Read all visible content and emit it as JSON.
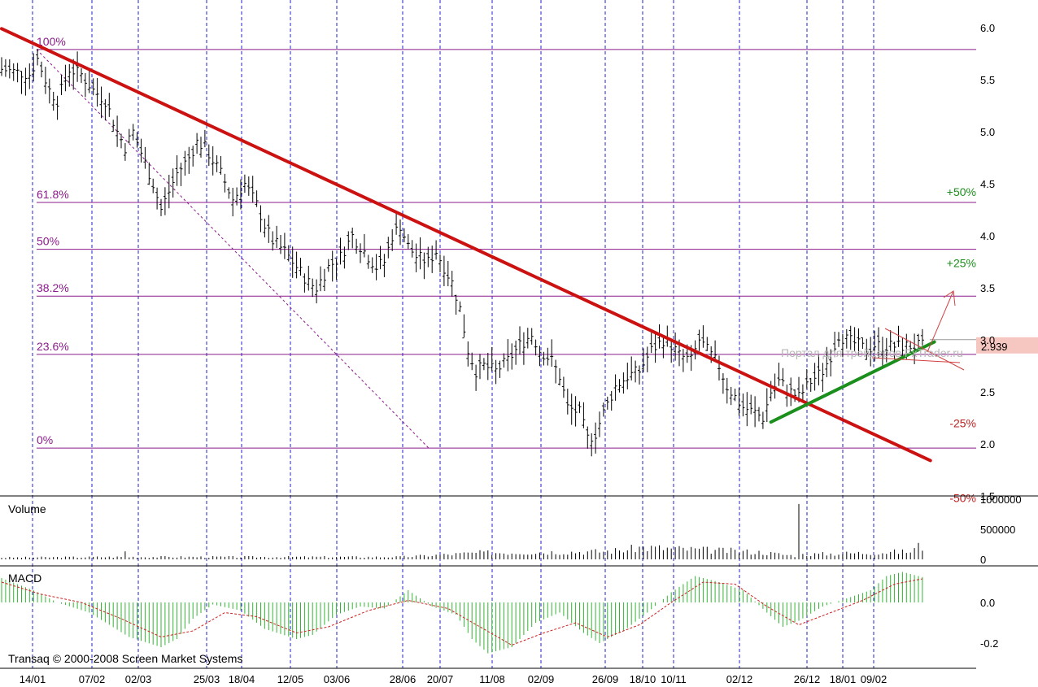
{
  "chart_data": {
    "type": "ohlc",
    "x_tick_labels": [
      "14/01",
      "07/02",
      "02/03",
      "25/03",
      "18/04",
      "12/05",
      "03/06",
      "28/06",
      "20/07",
      "11/08",
      "02/09",
      "26/09",
      "18/10",
      "10/11",
      "02/12",
      "26/12",
      "18/01",
      "09/02"
    ],
    "price_axis": {
      "ylim": [
        1.5,
        6.0
      ],
      "ticks": [
        "6.0",
        "5.5",
        "5.0",
        "4.5",
        "4.0",
        "3.5",
        "3.0",
        "2.5",
        "2.0",
        "1.5"
      ]
    },
    "last_price": "2.939",
    "fibonacci_levels": [
      {
        "label": "100%",
        "value": 5.79
      },
      {
        "label": "61.8%",
        "value": 4.32
      },
      {
        "label": "50%",
        "value": 3.87
      },
      {
        "label": "38.2%",
        "value": 3.42
      },
      {
        "label": "23.6%",
        "value": 2.86
      },
      {
        "label": "0%",
        "value": 1.96
      }
    ],
    "targets": [
      {
        "label": "+50%",
        "value": 4.42,
        "sign": "pos"
      },
      {
        "label": "+25%",
        "value": 3.74,
        "sign": "pos"
      },
      {
        "label": "-25%",
        "value": 2.2,
        "sign": "neg"
      },
      {
        "label": "-50%",
        "value": 1.48,
        "sign": "neg"
      }
    ],
    "trendlines": [
      {
        "name": "resistance",
        "color": "#cc1111",
        "from": [
          0.0,
          5.99
        ],
        "to": [
          233.0,
          1.84
        ]
      },
      {
        "name": "support",
        "color": "#1b8f1b",
        "from": [
          193.0,
          2.21
        ],
        "to": [
          234.0,
          2.98
        ]
      }
    ],
    "price_anchors": [
      [
        0,
        5.6
      ],
      [
        7,
        5.55
      ],
      [
        9,
        5.7
      ],
      [
        12,
        5.4
      ],
      [
        14,
        5.3
      ],
      [
        17,
        5.6
      ],
      [
        20,
        5.55
      ],
      [
        23,
        5.4
      ],
      [
        26,
        5.3
      ],
      [
        29,
        5.0
      ],
      [
        31,
        4.85
      ],
      [
        33,
        5.0
      ],
      [
        36,
        4.7
      ],
      [
        38,
        4.5
      ],
      [
        40,
        4.25
      ],
      [
        44,
        4.6
      ],
      [
        47,
        4.75
      ],
      [
        49,
        4.9
      ],
      [
        51,
        4.85
      ],
      [
        55,
        4.6
      ],
      [
        58,
        4.35
      ],
      [
        61,
        4.5
      ],
      [
        64,
        4.3
      ],
      [
        66,
        4.1
      ],
      [
        68,
        3.95
      ],
      [
        71,
        3.85
      ],
      [
        74,
        3.7
      ],
      [
        77,
        3.55
      ],
      [
        79,
        3.5
      ],
      [
        82,
        3.7
      ],
      [
        85,
        3.8
      ],
      [
        88,
        4.0
      ],
      [
        90,
        3.9
      ],
      [
        92,
        3.8
      ],
      [
        94,
        3.7
      ],
      [
        96,
        3.75
      ],
      [
        98,
        4.0
      ],
      [
        100,
        4.1
      ],
      [
        102,
        3.9
      ],
      [
        104,
        3.8
      ],
      [
        107,
        3.75
      ],
      [
        109,
        3.85
      ],
      [
        111,
        3.7
      ],
      [
        113,
        3.55
      ],
      [
        115,
        3.3
      ],
      [
        117,
        2.9
      ],
      [
        119,
        2.7
      ],
      [
        121,
        2.75
      ],
      [
        124,
        2.7
      ],
      [
        127,
        2.8
      ],
      [
        130,
        2.95
      ],
      [
        133,
        3.05
      ],
      [
        135,
        2.9
      ],
      [
        138,
        2.8
      ],
      [
        140,
        2.65
      ],
      [
        142,
        2.35
      ],
      [
        145,
        2.3
      ],
      [
        147,
        2.05
      ],
      [
        149,
        2.1
      ],
      [
        151,
        2.3
      ],
      [
        154,
        2.55
      ],
      [
        157,
        2.65
      ],
      [
        160,
        2.7
      ],
      [
        163,
        2.9
      ],
      [
        166,
        3.0
      ],
      [
        168,
        2.95
      ],
      [
        170,
        2.85
      ],
      [
        173,
        2.8
      ],
      [
        175,
        3.0
      ],
      [
        177,
        2.9
      ],
      [
        180,
        2.75
      ],
      [
        182,
        2.55
      ],
      [
        184,
        2.45
      ],
      [
        186,
        2.35
      ],
      [
        189,
        2.3
      ],
      [
        191,
        2.25
      ],
      [
        193,
        2.5
      ],
      [
        195,
        2.6
      ],
      [
        198,
        2.5
      ],
      [
        200,
        2.45
      ],
      [
        203,
        2.6
      ],
      [
        206,
        2.7
      ],
      [
        208,
        2.85
      ],
      [
        210,
        3.05
      ],
      [
        212,
        3.0
      ],
      [
        215,
        2.95
      ],
      [
        217,
        2.9
      ],
      [
        219,
        2.95
      ],
      [
        221,
        2.94
      ]
    ],
    "volume_pane": {
      "title": "Volume",
      "ylim": [
        0,
        1000000
      ],
      "ticks": [
        "1000000",
        "500000",
        "0"
      ]
    },
    "volume_anchors": [
      [
        0,
        30000
      ],
      [
        30,
        40000
      ],
      [
        31,
        130000
      ],
      [
        32,
        40000
      ],
      [
        100,
        40000
      ],
      [
        112,
        80000
      ],
      [
        120,
        110000
      ],
      [
        150,
        130000
      ],
      [
        157,
        160000
      ],
      [
        160,
        200000
      ],
      [
        190,
        120000
      ],
      [
        199,
        60000
      ],
      [
        200,
        920000
      ],
      [
        201,
        80000
      ],
      [
        228,
        130000
      ],
      [
        230,
        220000
      ],
      [
        235,
        120000
      ],
      [
        240,
        110000
      ]
    ],
    "macd_pane": {
      "title": "MACD",
      "ylim": [
        -0.26,
        0.26
      ],
      "ticks": [
        "0.0",
        "-0.2"
      ]
    },
    "macd_anchors": [
      [
        0,
        0.12
      ],
      [
        8,
        0.06
      ],
      [
        14,
        0.0
      ],
      [
        22,
        -0.05
      ],
      [
        32,
        -0.17
      ],
      [
        40,
        -0.22
      ],
      [
        44,
        -0.18
      ],
      [
        48,
        -0.08
      ],
      [
        53,
        -0.01
      ],
      [
        60,
        -0.04
      ],
      [
        66,
        -0.13
      ],
      [
        74,
        -0.18
      ],
      [
        78,
        -0.16
      ],
      [
        84,
        -0.06
      ],
      [
        90,
        -0.02
      ],
      [
        96,
        -0.03
      ],
      [
        102,
        0.06
      ],
      [
        108,
        -0.02
      ],
      [
        114,
        -0.06
      ],
      [
        118,
        -0.18
      ],
      [
        122,
        -0.25
      ],
      [
        128,
        -0.22
      ],
      [
        134,
        -0.1
      ],
      [
        140,
        -0.05
      ],
      [
        146,
        -0.15
      ],
      [
        150,
        -0.2
      ],
      [
        156,
        -0.14
      ],
      [
        162,
        -0.05
      ],
      [
        168,
        0.05
      ],
      [
        174,
        0.13
      ],
      [
        180,
        0.1
      ],
      [
        186,
        0.06
      ],
      [
        192,
        -0.05
      ],
      [
        196,
        -0.12
      ],
      [
        200,
        -0.09
      ],
      [
        206,
        -0.02
      ],
      [
        212,
        0.02
      ],
      [
        218,
        0.06
      ],
      [
        222,
        0.13
      ],
      [
        226,
        0.15
      ],
      [
        232,
        0.12
      ],
      [
        240,
        0.1
      ]
    ],
    "macd_signal_anchors": [
      [
        0,
        0.1
      ],
      [
        10,
        0.04
      ],
      [
        20,
        0.0
      ],
      [
        30,
        -0.08
      ],
      [
        40,
        -0.17
      ],
      [
        48,
        -0.14
      ],
      [
        56,
        -0.05
      ],
      [
        64,
        -0.07
      ],
      [
        74,
        -0.15
      ],
      [
        82,
        -0.12
      ],
      [
        92,
        -0.04
      ],
      [
        102,
        0.01
      ],
      [
        112,
        -0.03
      ],
      [
        120,
        -0.12
      ],
      [
        128,
        -0.21
      ],
      [
        136,
        -0.15
      ],
      [
        144,
        -0.1
      ],
      [
        152,
        -0.17
      ],
      [
        160,
        -0.11
      ],
      [
        168,
        0.0
      ],
      [
        176,
        0.1
      ],
      [
        184,
        0.09
      ],
      [
        192,
        -0.02
      ],
      [
        200,
        -0.11
      ],
      [
        208,
        -0.05
      ],
      [
        216,
        0.01
      ],
      [
        224,
        0.09
      ],
      [
        232,
        0.12
      ],
      [
        240,
        0.1
      ]
    ],
    "copyright": "Transaq © 2000-2008 Screen Market Systems",
    "watermark": "Портал для трейдеров FxTrader.ru"
  }
}
